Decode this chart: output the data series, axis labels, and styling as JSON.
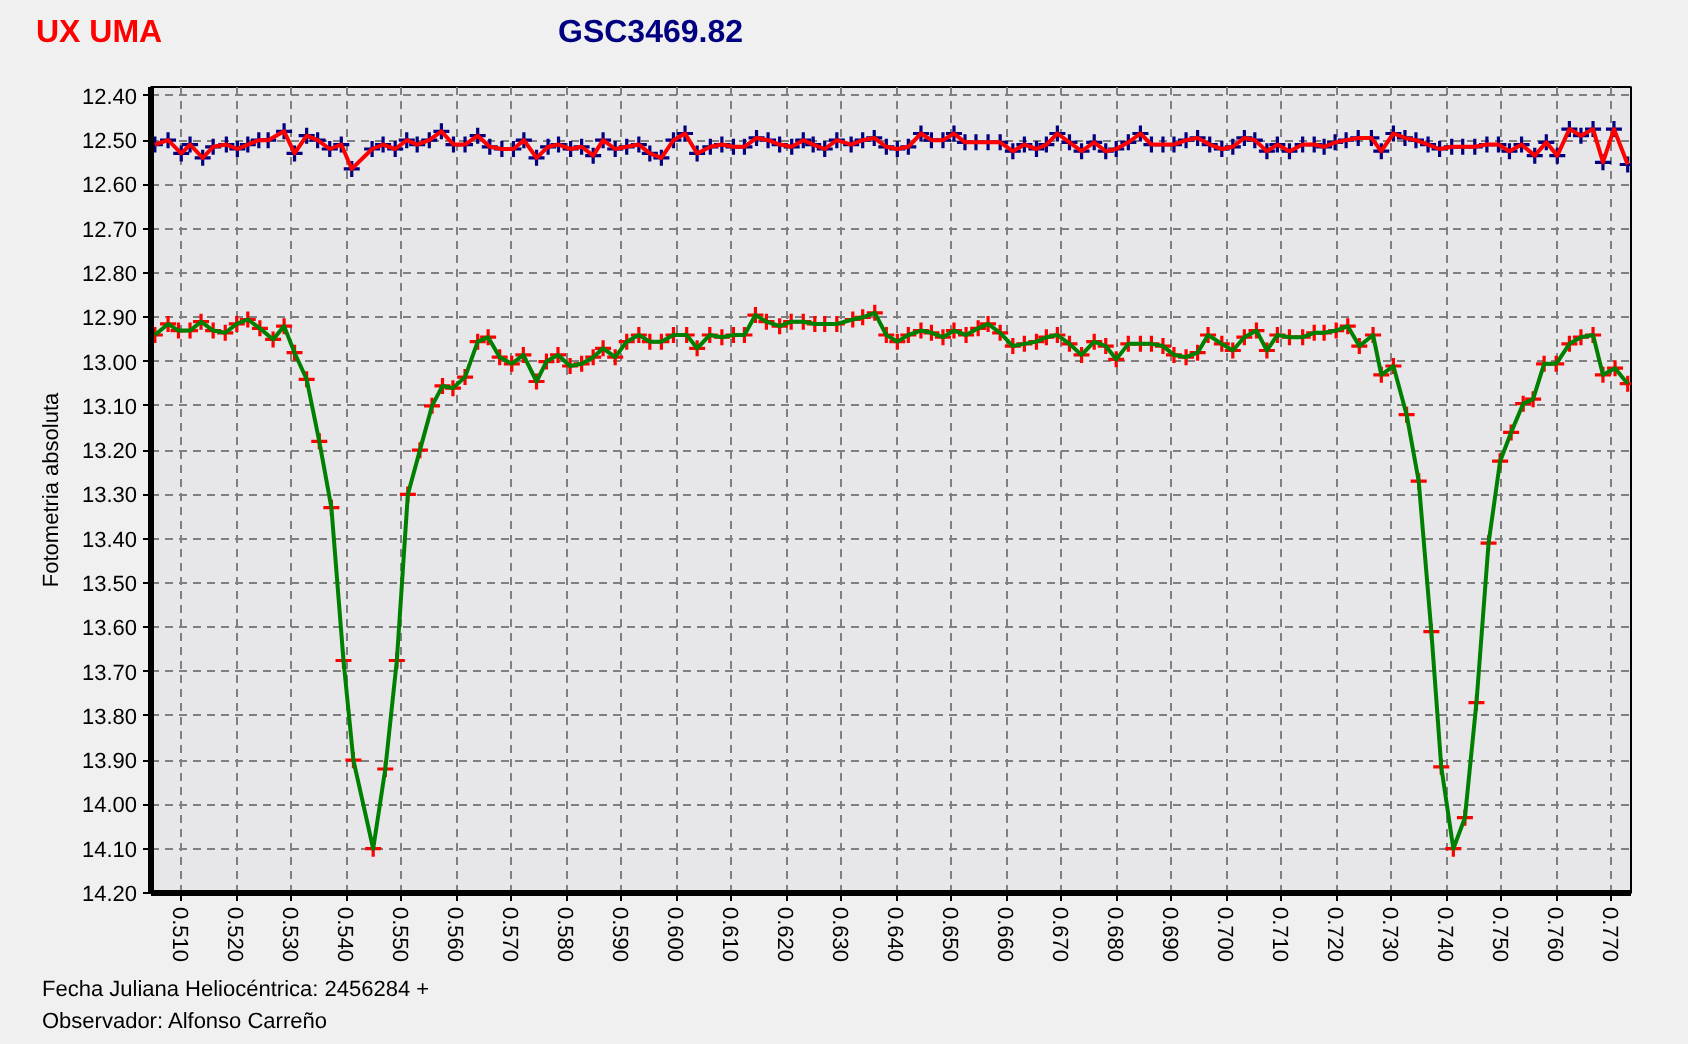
{
  "chart_data": {
    "type": "line",
    "xlabel": "Fecha Juliana Heliocéntrica: 2456284 +",
    "ylabel": "Fotometria absoluta",
    "annotations": [
      "Observador: Alfonso Carreño"
    ],
    "xlim": [
      0.5045,
      0.7736
    ],
    "ylim": [
      14.2,
      12.38
    ],
    "xticks": [
      {
        "value": 0.51,
        "label": "0.510"
      },
      {
        "value": 0.52,
        "label": "0.520"
      },
      {
        "value": 0.53,
        "label": "0.530"
      },
      {
        "value": 0.54,
        "label": "0.540"
      },
      {
        "value": 0.55,
        "label": "0.550"
      },
      {
        "value": 0.56,
        "label": "0.560"
      },
      {
        "value": 0.57,
        "label": "0.570"
      },
      {
        "value": 0.58,
        "label": "0.580"
      },
      {
        "value": 0.59,
        "label": "0.590"
      },
      {
        "value": 0.6,
        "label": "0.600"
      },
      {
        "value": 0.61,
        "label": "0.610"
      },
      {
        "value": 0.62,
        "label": "0.620"
      },
      {
        "value": 0.63,
        "label": "0.630"
      },
      {
        "value": 0.64,
        "label": "0.640"
      },
      {
        "value": 0.65,
        "label": "0.650"
      },
      {
        "value": 0.66,
        "label": "0.660"
      },
      {
        "value": 0.67,
        "label": "0.670"
      },
      {
        "value": 0.68,
        "label": "0.680"
      },
      {
        "value": 0.69,
        "label": "0.690"
      },
      {
        "value": 0.7,
        "label": "0.700"
      },
      {
        "value": 0.71,
        "label": "0.710"
      },
      {
        "value": 0.72,
        "label": "0.720"
      },
      {
        "value": 0.73,
        "label": "0.730"
      },
      {
        "value": 0.74,
        "label": "0.740"
      },
      {
        "value": 0.75,
        "label": "0.750"
      },
      {
        "value": 0.76,
        "label": "0.760"
      },
      {
        "value": 0.77,
        "label": "0.770"
      }
    ],
    "yticks": [
      {
        "value": 12.4,
        "label": "12.40"
      },
      {
        "value": 12.5,
        "label": "12.50"
      },
      {
        "value": 12.6,
        "label": "12.60"
      },
      {
        "value": 12.7,
        "label": "12.70"
      },
      {
        "value": 12.8,
        "label": "12.80"
      },
      {
        "value": 12.9,
        "label": "12.90"
      },
      {
        "value": 13.0,
        "label": "13.00"
      },
      {
        "value": 13.1,
        "label": "13.10"
      },
      {
        "value": 13.2,
        "label": "13.20"
      },
      {
        "value": 13.3,
        "label": "13.30"
      },
      {
        "value": 13.4,
        "label": "13.40"
      },
      {
        "value": 13.5,
        "label": "13.50"
      },
      {
        "value": 13.6,
        "label": "13.60"
      },
      {
        "value": 13.7,
        "label": "13.70"
      },
      {
        "value": 13.8,
        "label": "13.80"
      },
      {
        "value": 13.9,
        "label": "13.90"
      },
      {
        "value": 14.0,
        "label": "14.00"
      },
      {
        "value": 14.1,
        "label": "14.10"
      },
      {
        "value": 14.2,
        "label": "14.20"
      }
    ],
    "grid": true,
    "series": [
      {
        "type": "scatter",
        "name": "UX UMA",
        "color": "#ff0000",
        "marker": "cross",
        "x": [
          0.5052,
          0.5076,
          0.5095,
          0.5116,
          0.5136,
          0.5158,
          0.518,
          0.5201,
          0.5221,
          0.5243,
          0.5267,
          0.5287,
          0.5306,
          0.5328,
          0.5351,
          0.5373,
          0.5395,
          0.5413,
          0.5449,
          0.5471,
          0.5492,
          0.5512,
          0.5534,
          0.5556,
          0.5575,
          0.5594,
          0.5616,
          0.5639,
          0.5658,
          0.5679,
          0.5701,
          0.5722,
          0.5746,
          0.5764,
          0.5785,
          0.5807,
          0.5828,
          0.5849,
          0.5867,
          0.5889,
          0.591,
          0.5932,
          0.5952,
          0.5973,
          0.5995,
          0.6019,
          0.6038,
          0.6061,
          0.6083,
          0.6104,
          0.6124,
          0.6144,
          0.6164,
          0.6188,
          0.6209,
          0.6231,
          0.6252,
          0.627,
          0.6292,
          0.6321,
          0.6339,
          0.6361,
          0.6382,
          0.6402,
          0.6422,
          0.6445,
          0.6464,
          0.6485,
          0.6505,
          0.6527,
          0.6549,
          0.6567,
          0.6589,
          0.6612,
          0.6633,
          0.6655,
          0.6673,
          0.6693,
          0.6715,
          0.6737,
          0.676,
          0.6781,
          0.68,
          0.6822,
          0.6844,
          0.6864,
          0.6885,
          0.6905,
          0.6927,
          0.6948,
          0.6967,
          0.6992,
          0.7012,
          0.7033,
          0.7055,
          0.7074,
          0.7093,
          0.7115,
          0.7139,
          0.716,
          0.7178,
          0.72,
          0.7221,
          0.7242,
          0.7267,
          0.7282,
          0.7304,
          0.7328,
          0.735,
          0.7373,
          0.7391,
          0.7413,
          0.7434,
          0.7455,
          0.7477,
          0.7498,
          0.7518,
          0.754,
          0.7558,
          0.7578,
          0.76,
          0.7624,
          0.7645,
          0.7667,
          0.7685,
          0.7707,
          0.773
        ],
        "values": [
          12.94,
          12.915,
          12.93,
          12.93,
          12.91,
          12.93,
          12.935,
          12.915,
          12.905,
          12.925,
          12.95,
          12.92,
          12.98,
          13.04,
          13.18,
          13.33,
          13.675,
          13.9,
          14.1,
          13.92,
          13.675,
          13.3,
          13.2,
          13.1,
          13.055,
          13.06,
          13.035,
          12.955,
          12.945,
          12.99,
          13.005,
          12.985,
          13.045,
          13.0,
          12.985,
          13.01,
          13.005,
          12.99,
          12.97,
          12.99,
          12.955,
          12.94,
          12.955,
          12.955,
          12.94,
          12.94,
          12.97,
          12.94,
          12.945,
          12.94,
          12.94,
          12.895,
          12.91,
          12.92,
          12.91,
          12.91,
          12.915,
          12.915,
          12.915,
          12.905,
          12.9,
          12.89,
          12.94,
          12.955,
          12.94,
          12.93,
          12.935,
          12.945,
          12.93,
          12.94,
          12.925,
          12.915,
          12.935,
          12.965,
          12.96,
          12.955,
          12.945,
          12.94,
          12.96,
          12.985,
          12.955,
          12.965,
          12.995,
          12.96,
          12.96,
          12.96,
          12.965,
          12.985,
          12.99,
          12.98,
          12.94,
          12.96,
          12.975,
          12.945,
          12.93,
          12.975,
          12.94,
          12.945,
          12.945,
          12.935,
          12.935,
          12.93,
          12.92,
          12.965,
          12.94,
          13.03,
          13.01,
          13.12,
          13.27,
          13.61,
          13.915,
          14.1,
          14.03,
          13.77,
          13.41,
          13.225,
          13.16,
          13.095,
          13.085,
          13.005,
          13.005,
          12.96,
          12.945,
          12.94,
          13.03,
          13.015,
          13.05
        ]
      },
      {
        "color": "#008000",
        "x": [
          0.5052,
          0.5076,
          0.5095,
          0.5116,
          0.5136,
          0.5158,
          0.518,
          0.5201,
          0.5221,
          0.5243,
          0.5267,
          0.5287,
          0.5306,
          0.5328,
          0.5351,
          0.5373,
          0.5395,
          0.5413,
          0.5449,
          0.5471,
          0.5492,
          0.5512,
          0.5534,
          0.5556,
          0.5575,
          0.5594,
          0.5616,
          0.5639,
          0.5658,
          0.5679,
          0.5701,
          0.5722,
          0.5746,
          0.5764,
          0.5785,
          0.5807,
          0.5828,
          0.5849,
          0.5867,
          0.5889,
          0.591,
          0.5932,
          0.5952,
          0.5973,
          0.5995,
          0.6019,
          0.6038,
          0.6061,
          0.6083,
          0.6104,
          0.6124,
          0.6144,
          0.6164,
          0.6188,
          0.6209,
          0.6231,
          0.6252,
          0.627,
          0.6292,
          0.6321,
          0.6339,
          0.6361,
          0.6382,
          0.6402,
          0.6422,
          0.6445,
          0.6464,
          0.6485,
          0.6505,
          0.6527,
          0.6549,
          0.6567,
          0.6589,
          0.6612,
          0.6633,
          0.6655,
          0.6673,
          0.6693,
          0.6715,
          0.6737,
          0.676,
          0.6781,
          0.68,
          0.6822,
          0.6844,
          0.6864,
          0.6885,
          0.6905,
          0.6927,
          0.6948,
          0.6967,
          0.6992,
          0.7012,
          0.7033,
          0.7055,
          0.7074,
          0.7093,
          0.7115,
          0.7139,
          0.716,
          0.7178,
          0.72,
          0.7221,
          0.7242,
          0.7267,
          0.7282,
          0.7304,
          0.7328,
          0.735,
          0.7373,
          0.7391,
          0.7413,
          0.7434,
          0.7455,
          0.7477,
          0.7498,
          0.7518,
          0.754,
          0.7558,
          0.7578,
          0.76,
          0.7624,
          0.7645,
          0.7667,
          0.7685,
          0.7707,
          0.773
        ],
        "values": [
          12.94,
          12.915,
          12.93,
          12.93,
          12.91,
          12.93,
          12.935,
          12.915,
          12.905,
          12.925,
          12.95,
          12.92,
          12.98,
          13.04,
          13.18,
          13.33,
          13.675,
          13.9,
          14.1,
          13.92,
          13.675,
          13.3,
          13.2,
          13.1,
          13.055,
          13.06,
          13.035,
          12.955,
          12.945,
          12.99,
          13.005,
          12.985,
          13.045,
          13.0,
          12.985,
          13.01,
          13.005,
          12.99,
          12.97,
          12.99,
          12.955,
          12.94,
          12.955,
          12.955,
          12.94,
          12.94,
          12.97,
          12.94,
          12.945,
          12.94,
          12.94,
          12.895,
          12.91,
          12.92,
          12.91,
          12.91,
          12.915,
          12.915,
          12.915,
          12.905,
          12.9,
          12.89,
          12.94,
          12.955,
          12.94,
          12.93,
          12.935,
          12.945,
          12.93,
          12.94,
          12.925,
          12.915,
          12.935,
          12.965,
          12.96,
          12.955,
          12.945,
          12.94,
          12.96,
          12.985,
          12.955,
          12.965,
          12.995,
          12.96,
          12.96,
          12.96,
          12.965,
          12.985,
          12.99,
          12.98,
          12.94,
          12.96,
          12.975,
          12.945,
          12.93,
          12.975,
          12.94,
          12.945,
          12.945,
          12.935,
          12.935,
          12.93,
          12.92,
          12.965,
          12.94,
          13.03,
          13.01,
          13.12,
          13.27,
          13.61,
          13.915,
          14.1,
          14.03,
          13.77,
          13.41,
          13.225,
          13.16,
          13.095,
          13.085,
          13.005,
          13.005,
          12.96,
          12.945,
          12.94,
          13.03,
          13.015,
          13.05
        ]
      },
      {
        "type": "scatter",
        "name": "GSC3469.82",
        "color": "#000080",
        "marker": "cross",
        "x": [
          0.5052,
          0.5076,
          0.51,
          0.5116,
          0.5139,
          0.5158,
          0.5182,
          0.5202,
          0.5221,
          0.5241,
          0.5258,
          0.5287,
          0.5306,
          0.5328,
          0.5348,
          0.537,
          0.5391,
          0.541,
          0.5447,
          0.5467,
          0.5489,
          0.551,
          0.5529,
          0.5551,
          0.5573,
          0.5595,
          0.5616,
          0.5639,
          0.5661,
          0.5683,
          0.5704,
          0.5723,
          0.5746,
          0.5767,
          0.5786,
          0.5808,
          0.5828,
          0.5849,
          0.5867,
          0.5889,
          0.591,
          0.5932,
          0.5952,
          0.5973,
          0.5995,
          0.6016,
          0.6038,
          0.6062,
          0.6083,
          0.6104,
          0.6124,
          0.6146,
          0.6167,
          0.6188,
          0.621,
          0.6231,
          0.6249,
          0.627,
          0.6292,
          0.6318,
          0.6339,
          0.636,
          0.6382,
          0.6402,
          0.6422,
          0.6445,
          0.6464,
          0.6485,
          0.6505,
          0.6525,
          0.6545,
          0.6567,
          0.6589,
          0.6612,
          0.6633,
          0.6655,
          0.6673,
          0.6693,
          0.6715,
          0.6737,
          0.676,
          0.6781,
          0.68,
          0.6822,
          0.6844,
          0.6864,
          0.6885,
          0.6905,
          0.6927,
          0.6948,
          0.697,
          0.6992,
          0.7012,
          0.7033,
          0.7052,
          0.7074,
          0.7093,
          0.7115,
          0.7139,
          0.716,
          0.7178,
          0.7198,
          0.7218,
          0.724,
          0.7264,
          0.7282,
          0.7304,
          0.7325,
          0.7345,
          0.7367,
          0.7388,
          0.741,
          0.743,
          0.7452,
          0.7474,
          0.7495,
          0.7515,
          0.7537,
          0.7561,
          0.7582,
          0.7602,
          0.7624,
          0.7645,
          0.7667,
          0.7685,
          0.7705,
          0.773
        ],
        "values": [
          12.51,
          12.5,
          12.53,
          12.51,
          12.54,
          12.515,
          12.51,
          12.52,
          12.51,
          12.5,
          12.5,
          12.48,
          12.53,
          12.49,
          12.5,
          12.52,
          12.51,
          12.565,
          12.52,
          12.51,
          12.52,
          12.5,
          12.51,
          12.5,
          12.48,
          12.51,
          12.51,
          12.49,
          12.515,
          12.52,
          12.52,
          12.5,
          12.54,
          12.515,
          12.51,
          12.52,
          12.515,
          12.535,
          12.5,
          12.52,
          12.515,
          12.51,
          12.53,
          12.54,
          12.5,
          12.485,
          12.53,
          12.515,
          12.51,
          12.515,
          12.515,
          12.495,
          12.5,
          12.51,
          12.515,
          12.5,
          12.51,
          12.52,
          12.5,
          12.51,
          12.5,
          12.495,
          12.515,
          12.52,
          12.515,
          12.485,
          12.5,
          12.5,
          12.485,
          12.505,
          12.505,
          12.505,
          12.505,
          12.525,
          12.51,
          12.52,
          12.51,
          12.485,
          12.505,
          12.525,
          12.505,
          12.525,
          12.52,
          12.505,
          12.485,
          12.51,
          12.51,
          12.51,
          12.5,
          12.495,
          12.51,
          12.52,
          12.515,
          12.495,
          12.5,
          12.525,
          12.51,
          12.525,
          12.51,
          12.51,
          12.515,
          12.505,
          12.5,
          12.495,
          12.495,
          12.525,
          12.485,
          12.495,
          12.5,
          12.51,
          12.52,
          12.515,
          12.515,
          12.515,
          12.51,
          12.51,
          12.525,
          12.51,
          12.535,
          12.505,
          12.535,
          12.475,
          12.49,
          12.475,
          12.55,
          12.475,
          12.555
        ]
      },
      {
        "color": "#ff0000",
        "x": [
          0.5052,
          0.5076,
          0.51,
          0.5116,
          0.5139,
          0.5158,
          0.5182,
          0.5202,
          0.5221,
          0.5241,
          0.5258,
          0.5287,
          0.5306,
          0.5328,
          0.5348,
          0.537,
          0.5391,
          0.541,
          0.5447,
          0.5467,
          0.5489,
          0.551,
          0.5529,
          0.5551,
          0.5573,
          0.5595,
          0.5616,
          0.5639,
          0.5661,
          0.5683,
          0.5704,
          0.5723,
          0.5746,
          0.5767,
          0.5786,
          0.5808,
          0.5828,
          0.5849,
          0.5867,
          0.5889,
          0.591,
          0.5932,
          0.5952,
          0.5973,
          0.5995,
          0.6016,
          0.6038,
          0.6062,
          0.6083,
          0.6104,
          0.6124,
          0.6146,
          0.6167,
          0.6188,
          0.621,
          0.6231,
          0.6249,
          0.627,
          0.6292,
          0.6318,
          0.6339,
          0.636,
          0.6382,
          0.6402,
          0.6422,
          0.6445,
          0.6464,
          0.6485,
          0.6505,
          0.6525,
          0.6545,
          0.6567,
          0.6589,
          0.6612,
          0.6633,
          0.6655,
          0.6673,
          0.6693,
          0.6715,
          0.6737,
          0.676,
          0.6781,
          0.68,
          0.6822,
          0.6844,
          0.6864,
          0.6885,
          0.6905,
          0.6927,
          0.6948,
          0.697,
          0.6992,
          0.7012,
          0.7033,
          0.7052,
          0.7074,
          0.7093,
          0.7115,
          0.7139,
          0.716,
          0.7178,
          0.7198,
          0.7218,
          0.724,
          0.7264,
          0.7282,
          0.7304,
          0.7325,
          0.7345,
          0.7367,
          0.7388,
          0.741,
          0.743,
          0.7452,
          0.7474,
          0.7495,
          0.7515,
          0.7537,
          0.7561,
          0.7582,
          0.7602,
          0.7624,
          0.7645,
          0.7667,
          0.7685,
          0.7705,
          0.773
        ],
        "values": [
          12.51,
          12.5,
          12.53,
          12.51,
          12.54,
          12.515,
          12.51,
          12.52,
          12.51,
          12.5,
          12.5,
          12.48,
          12.53,
          12.49,
          12.5,
          12.52,
          12.51,
          12.565,
          12.52,
          12.51,
          12.52,
          12.5,
          12.51,
          12.5,
          12.48,
          12.51,
          12.51,
          12.49,
          12.515,
          12.52,
          12.52,
          12.5,
          12.54,
          12.515,
          12.51,
          12.52,
          12.515,
          12.535,
          12.5,
          12.52,
          12.515,
          12.51,
          12.53,
          12.54,
          12.5,
          12.485,
          12.53,
          12.515,
          12.51,
          12.515,
          12.515,
          12.495,
          12.5,
          12.51,
          12.515,
          12.5,
          12.51,
          12.52,
          12.5,
          12.51,
          12.5,
          12.495,
          12.515,
          12.52,
          12.515,
          12.485,
          12.5,
          12.5,
          12.485,
          12.505,
          12.505,
          12.505,
          12.505,
          12.525,
          12.51,
          12.52,
          12.51,
          12.485,
          12.505,
          12.525,
          12.505,
          12.525,
          12.52,
          12.505,
          12.485,
          12.51,
          12.51,
          12.51,
          12.5,
          12.495,
          12.51,
          12.52,
          12.515,
          12.495,
          12.5,
          12.525,
          12.51,
          12.525,
          12.51,
          12.51,
          12.515,
          12.505,
          12.5,
          12.495,
          12.495,
          12.525,
          12.485,
          12.495,
          12.5,
          12.51,
          12.52,
          12.515,
          12.515,
          12.515,
          12.51,
          12.51,
          12.525,
          12.51,
          12.535,
          12.505,
          12.535,
          12.475,
          12.49,
          12.475,
          12.55,
          12.475,
          12.555
        ]
      }
    ]
  }
}
